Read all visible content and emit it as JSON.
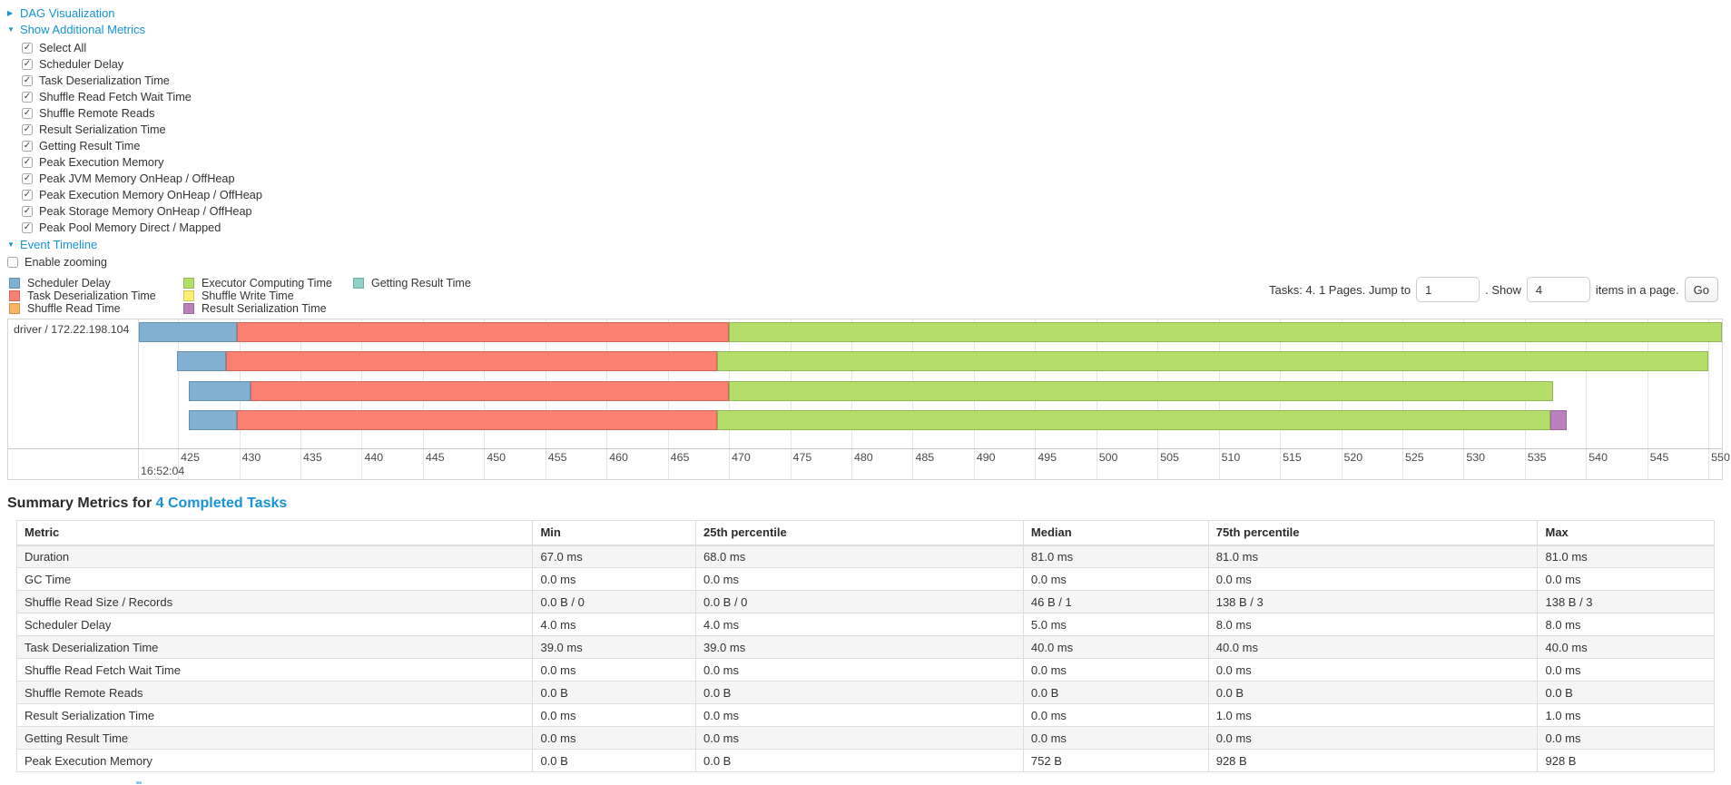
{
  "icons": {
    "collapsed_arrow": "▶",
    "expanded_arrow": "▼",
    "check": "✓"
  },
  "ui_colors": {
    "link": "#1593d8"
  },
  "sections": {
    "dag": "DAG Visualization",
    "additional_metrics": "Show Additional Metrics",
    "event_timeline": "Event Timeline",
    "enable_zooming": "Enable zooming"
  },
  "metrics_panel": {
    "items": [
      "Select All",
      "Scheduler Delay",
      "Task Deserialization Time",
      "Shuffle Read Fetch Wait Time",
      "Shuffle Remote Reads",
      "Result Serialization Time",
      "Getting Result Time",
      "Peak Execution Memory",
      "Peak JVM Memory OnHeap / OffHeap",
      "Peak Execution Memory OnHeap / OffHeap",
      "Peak Storage Memory OnHeap / OffHeap",
      "Peak Pool Memory Direct / Mapped"
    ]
  },
  "pagination": {
    "prefix": "Tasks: 4. 1 Pages. Jump to",
    "jump_value": "1",
    "middle": ". Show",
    "show_value": "4",
    "suffix": "items in a page.",
    "go_label": "Go"
  },
  "legend": {
    "columns": [
      [
        {
          "label": "Scheduler Delay",
          "color": "scheduler_delay"
        },
        {
          "label": "Task Deserialization Time",
          "color": "task_deserialization_time"
        },
        {
          "label": "Shuffle Read Time",
          "color": "shuffle_read_time"
        }
      ],
      [
        {
          "label": "Executor Computing Time",
          "color": "executor_computing_time"
        },
        {
          "label": "Shuffle Write Time",
          "color": "shuffle_write_time"
        },
        {
          "label": "Result Serialization Time",
          "color": "result_serialization_time"
        }
      ],
      [
        {
          "label": "Getting Result Time",
          "color": "getting_result_time"
        }
      ]
    ]
  },
  "chart_data": {
    "type": "timeline",
    "title": "Event Timeline",
    "executor_label": "driver / 172.22.198.104",
    "colors": {
      "scheduler_delay": "#80B1D3",
      "task_deserialization_time": "#FB8072",
      "shuffle_read_time": "#FDB462",
      "executor_computing_time": "#B3DE69",
      "shuffle_write_time": "#FFED6F",
      "result_serialization_time": "#BC80BD",
      "getting_result_time": "#8DD3C7"
    },
    "x_axis": {
      "unit": "milliseconds within second 16:52:04",
      "major_label": "16:52:04",
      "min": 421.8,
      "max": 551.1,
      "tick_start": 425,
      "tick_end": 550,
      "tick_step": 5
    },
    "tasks": [
      {
        "segments": [
          {
            "type": "scheduler_delay",
            "start": 421.8,
            "end": 429.8
          },
          {
            "type": "task_deserialization_time",
            "start": 429.8,
            "end": 470.0
          },
          {
            "type": "executor_computing_time",
            "start": 470.0,
            "end": 551.1
          }
        ]
      },
      {
        "segments": [
          {
            "type": "scheduler_delay",
            "start": 424.9,
            "end": 428.9
          },
          {
            "type": "task_deserialization_time",
            "start": 428.9,
            "end": 469.0
          },
          {
            "type": "executor_computing_time",
            "start": 469.0,
            "end": 550.0
          }
        ]
      },
      {
        "segments": [
          {
            "type": "scheduler_delay",
            "start": 425.9,
            "end": 430.9
          },
          {
            "type": "task_deserialization_time",
            "start": 430.9,
            "end": 470.0
          },
          {
            "type": "executor_computing_time",
            "start": 470.0,
            "end": 537.3
          }
        ]
      },
      {
        "segments": [
          {
            "type": "scheduler_delay",
            "start": 425.9,
            "end": 429.8
          },
          {
            "type": "task_deserialization_time",
            "start": 429.8,
            "end": 469.0
          },
          {
            "type": "executor_computing_time",
            "start": 469.0,
            "end": 537.1
          },
          {
            "type": "result_serialization_time",
            "start": 537.1,
            "end": 538.4
          }
        ]
      }
    ]
  },
  "summary": {
    "title_prefix": "Summary Metrics for",
    "title_link": "4 Completed Tasks",
    "columns": [
      "Metric",
      "Min",
      "25th percentile",
      "Median",
      "75th percentile",
      "Max"
    ],
    "rows": [
      [
        "Duration",
        "67.0 ms",
        "68.0 ms",
        "81.0 ms",
        "81.0 ms",
        "81.0 ms"
      ],
      [
        "GC Time",
        "0.0 ms",
        "0.0 ms",
        "0.0 ms",
        "0.0 ms",
        "0.0 ms"
      ],
      [
        "Shuffle Read Size / Records",
        "0.0 B / 0",
        "0.0 B / 0",
        "46 B / 1",
        "138 B / 3",
        "138 B / 3"
      ],
      [
        "Scheduler Delay",
        "4.0 ms",
        "4.0 ms",
        "5.0 ms",
        "8.0 ms",
        "8.0 ms"
      ],
      [
        "Task Deserialization Time",
        "39.0 ms",
        "39.0 ms",
        "40.0 ms",
        "40.0 ms",
        "40.0 ms"
      ],
      [
        "Shuffle Read Fetch Wait Time",
        "0.0 ms",
        "0.0 ms",
        "0.0 ms",
        "0.0 ms",
        "0.0 ms"
      ],
      [
        "Shuffle Remote Reads",
        "0.0 B",
        "0.0 B",
        "0.0 B",
        "0.0 B",
        "0.0 B"
      ],
      [
        "Result Serialization Time",
        "0.0 ms",
        "0.0 ms",
        "0.0 ms",
        "1.0 ms",
        "1.0 ms"
      ],
      [
        "Getting Result Time",
        "0.0 ms",
        "0.0 ms",
        "0.0 ms",
        "0.0 ms",
        "0.0 ms"
      ],
      [
        "Peak Execution Memory",
        "0.0 B",
        "0.0 B",
        "752 B",
        "928 B",
        "928 B"
      ]
    ]
  }
}
